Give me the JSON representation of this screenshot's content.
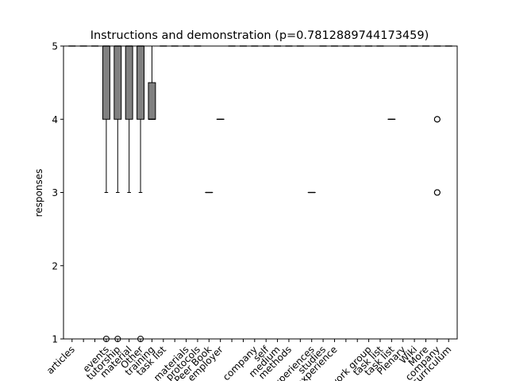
{
  "chart_data": {
    "type": "box",
    "title": "Instructions and demonstration (p=0.7812889744173459)",
    "xlabel": "",
    "ylabel": "responses",
    "ylim": [
      1,
      5
    ],
    "yticks": [
      1,
      2,
      3,
      4,
      5
    ],
    "grid": false,
    "categories": [
      "articles",
      "",
      "",
      "events",
      "tutorship",
      "material",
      "Other",
      "training",
      "task list",
      "",
      "materials",
      "protocols",
      "Peer Book",
      "employer",
      "",
      "",
      "company",
      "self",
      "medium",
      "methods",
      "",
      "experiences",
      "studies",
      "experience",
      "",
      "",
      "work group",
      "task list",
      "task list",
      "Plenary",
      "Wiki",
      "More",
      "company",
      "curriculum"
    ],
    "boxes": [
      {
        "index": 0,
        "q1": 5,
        "median": 5,
        "q3": 5,
        "whislo": 5,
        "whishi": 5,
        "fliers": []
      },
      {
        "index": 1,
        "q1": 5,
        "median": 5,
        "q3": 5,
        "whislo": 5,
        "whishi": 5,
        "fliers": []
      },
      {
        "index": 2,
        "q1": 5,
        "median": 5,
        "q3": 5,
        "whislo": 5,
        "whishi": 5,
        "fliers": []
      },
      {
        "index": 3,
        "q1": 4,
        "median": 5,
        "q3": 5,
        "whislo": 3,
        "whishi": 5,
        "fliers": [
          1
        ]
      },
      {
        "index": 4,
        "q1": 4,
        "median": 5,
        "q3": 5,
        "whislo": 3,
        "whishi": 5,
        "fliers": [
          1
        ]
      },
      {
        "index": 5,
        "q1": 4,
        "median": 5,
        "q3": 5,
        "whislo": 3,
        "whishi": 5,
        "fliers": []
      },
      {
        "index": 6,
        "q1": 4,
        "median": 5,
        "q3": 5,
        "whislo": 3,
        "whishi": 5,
        "fliers": [
          1
        ]
      },
      {
        "index": 7,
        "q1": 4,
        "median": 4,
        "q3": 4.5,
        "whislo": 4,
        "whishi": 5,
        "fliers": []
      },
      {
        "index": 8,
        "q1": 5,
        "median": 5,
        "q3": 5,
        "whislo": 5,
        "whishi": 5,
        "fliers": []
      },
      {
        "index": 9,
        "q1": 5,
        "median": 5,
        "q3": 5,
        "whislo": 5,
        "whishi": 5,
        "fliers": []
      },
      {
        "index": 10,
        "q1": 5,
        "median": 5,
        "q3": 5,
        "whislo": 5,
        "whishi": 5,
        "fliers": []
      },
      {
        "index": 11,
        "q1": 5,
        "median": 5,
        "q3": 5,
        "whislo": 5,
        "whishi": 5,
        "fliers": []
      },
      {
        "index": 12,
        "q1": 3,
        "median": 3,
        "q3": 3,
        "whislo": 3,
        "whishi": 3,
        "fliers": []
      },
      {
        "index": 13,
        "q1": 4,
        "median": 4,
        "q3": 4,
        "whislo": 4,
        "whishi": 4,
        "fliers": []
      },
      {
        "index": 14,
        "q1": 5,
        "median": 5,
        "q3": 5,
        "whislo": 5,
        "whishi": 5,
        "fliers": []
      },
      {
        "index": 15,
        "q1": 5,
        "median": 5,
        "q3": 5,
        "whislo": 5,
        "whishi": 5,
        "fliers": []
      },
      {
        "index": 16,
        "q1": 5,
        "median": 5,
        "q3": 5,
        "whislo": 5,
        "whishi": 5,
        "fliers": []
      },
      {
        "index": 17,
        "q1": 5,
        "median": 5,
        "q3": 5,
        "whislo": 5,
        "whishi": 5,
        "fliers": []
      },
      {
        "index": 18,
        "q1": 5,
        "median": 5,
        "q3": 5,
        "whislo": 5,
        "whishi": 5,
        "fliers": []
      },
      {
        "index": 19,
        "q1": 5,
        "median": 5,
        "q3": 5,
        "whislo": 5,
        "whishi": 5,
        "fliers": []
      },
      {
        "index": 20,
        "q1": 5,
        "median": 5,
        "q3": 5,
        "whislo": 5,
        "whishi": 5,
        "fliers": []
      },
      {
        "index": 21,
        "q1": 3,
        "median": 3,
        "q3": 3,
        "whislo": 3,
        "whishi": 3,
        "fliers": []
      },
      {
        "index": 22,
        "q1": 5,
        "median": 5,
        "q3": 5,
        "whislo": 5,
        "whishi": 5,
        "fliers": []
      },
      {
        "index": 23,
        "q1": 5,
        "median": 5,
        "q3": 5,
        "whislo": 5,
        "whishi": 5,
        "fliers": []
      },
      {
        "index": 24,
        "q1": 5,
        "median": 5,
        "q3": 5,
        "whislo": 5,
        "whishi": 5,
        "fliers": []
      },
      {
        "index": 25,
        "q1": 5,
        "median": 5,
        "q3": 5,
        "whislo": 5,
        "whishi": 5,
        "fliers": []
      },
      {
        "index": 26,
        "q1": 5,
        "median": 5,
        "q3": 5,
        "whislo": 5,
        "whishi": 5,
        "fliers": []
      },
      {
        "index": 27,
        "q1": 5,
        "median": 5,
        "q3": 5,
        "whislo": 5,
        "whishi": 5,
        "fliers": []
      },
      {
        "index": 28,
        "q1": 4,
        "median": 4,
        "q3": 4,
        "whislo": 4,
        "whishi": 4,
        "fliers": []
      },
      {
        "index": 29,
        "q1": 5,
        "median": 5,
        "q3": 5,
        "whislo": 5,
        "whishi": 5,
        "fliers": []
      },
      {
        "index": 30,
        "q1": 5,
        "median": 5,
        "q3": 5,
        "whislo": 5,
        "whishi": 5,
        "fliers": []
      },
      {
        "index": 31,
        "q1": 5,
        "median": 5,
        "q3": 5,
        "whislo": 5,
        "whishi": 5,
        "fliers": []
      },
      {
        "index": 32,
        "q1": 5,
        "median": 5,
        "q3": 5,
        "whislo": 5,
        "whishi": 5,
        "fliers": [
          4,
          4,
          3,
          3
        ]
      },
      {
        "index": 33,
        "q1": 5,
        "median": 5,
        "q3": 5,
        "whislo": 5,
        "whishi": 5,
        "fliers": []
      }
    ],
    "colors": {
      "box_fill": "#808080",
      "line": "#000000",
      "background": "#ffffff"
    }
  }
}
